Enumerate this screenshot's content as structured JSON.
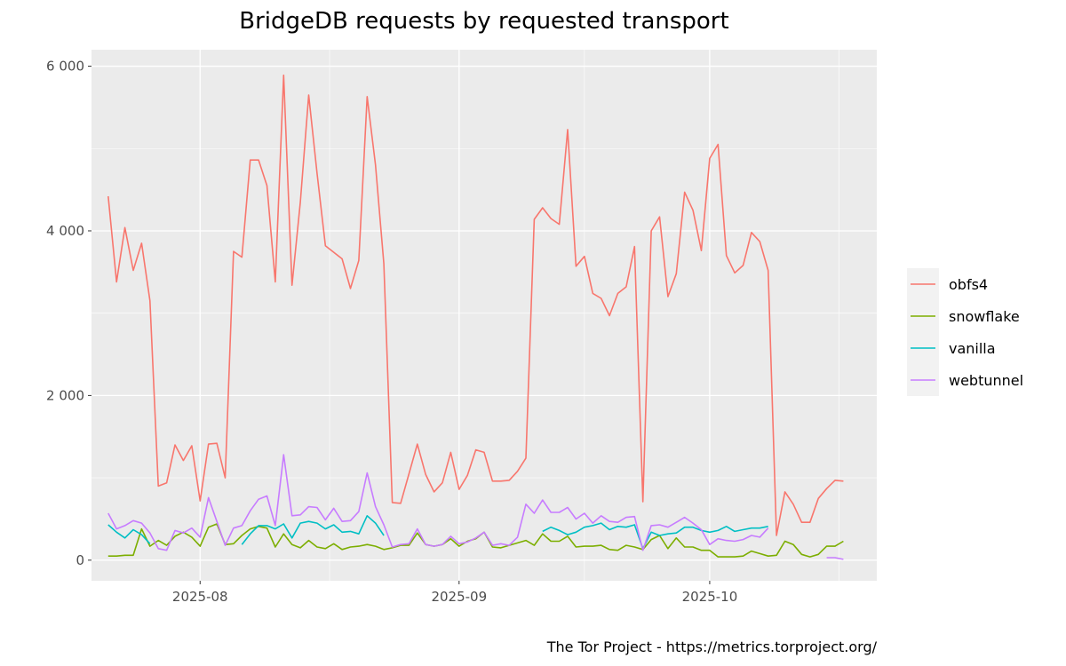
{
  "chart_data": {
    "type": "line",
    "title": "BridgeDB requests by requested transport",
    "caption": "The Tor Project - https://metrics.torproject.org/",
    "xlabel": "",
    "ylabel": "",
    "x_start": "2025-07-21",
    "x_end": "2025-10-19",
    "x_ticks": [
      {
        "date": "2025-08-01",
        "label": "2025-08"
      },
      {
        "date": "2025-09-01",
        "label": "2025-09"
      },
      {
        "date": "2025-10-01",
        "label": "2025-10"
      }
    ],
    "ylim": [
      -250,
      6200
    ],
    "y_ticks": [
      {
        "value": 0,
        "label": "0"
      },
      {
        "value": 2000,
        "label": "2 000"
      },
      {
        "value": 4000,
        "label": "4 000"
      },
      {
        "value": 6000,
        "label": "6 000"
      }
    ],
    "grid": true,
    "legend_position": "right",
    "series": [
      {
        "name": "obfs4",
        "color": "#F8766D",
        "start": "2025-07-21",
        "values": [
          4420,
          3380,
          4040,
          3520,
          3850,
          3150,
          900,
          940,
          1400,
          1210,
          1390,
          720,
          1410,
          1420,
          1000,
          3750,
          3680,
          4860,
          4860,
          4550,
          3380,
          5890,
          3340,
          4350,
          5650,
          4700,
          3820,
          3740,
          3660,
          3300,
          3640,
          5630,
          4800,
          3600,
          700,
          690,
          1050,
          1410,
          1040,
          830,
          940,
          1310,
          860,
          1030,
          1340,
          1310,
          960,
          960,
          970,
          1080,
          1240,
          4140,
          4280,
          4150,
          4080,
          5230,
          3570,
          3690,
          3240,
          3180,
          2970,
          3240,
          3320,
          3810,
          710,
          4000,
          4170,
          3200,
          3480,
          4470,
          4250,
          3760,
          4880,
          5050,
          3700,
          3490,
          3580,
          3980,
          3870,
          3520,
          300,
          830,
          680,
          460,
          460,
          750,
          870,
          970,
          960
        ]
      },
      {
        "name": "snowflake",
        "color": "#7CAE00",
        "start": "2025-07-21",
        "values": [
          50,
          50,
          60,
          60,
          380,
          170,
          240,
          180,
          290,
          340,
          280,
          170,
          400,
          440,
          190,
          200,
          300,
          380,
          410,
          390,
          160,
          320,
          190,
          150,
          240,
          160,
          140,
          200,
          130,
          160,
          170,
          190,
          170,
          130,
          150,
          180,
          180,
          330,
          190,
          170,
          190,
          260,
          170,
          230,
          260,
          340,
          160,
          150,
          180,
          210,
          240,
          180,
          320,
          230,
          230,
          290,
          160,
          170,
          170,
          180,
          130,
          120,
          180,
          160,
          130,
          250,
          300,
          140,
          270,
          160,
          160,
          120,
          120,
          40,
          40,
          40,
          50,
          110,
          80,
          50,
          60,
          230,
          190,
          70,
          40,
          70,
          170,
          170,
          230
        ]
      },
      {
        "name": "vanilla",
        "color": "#00BFC4",
        "start": "2025-07-21",
        "values": [
          430,
          340,
          270,
          370,
          310,
          200,
          null,
          null,
          null,
          null,
          null,
          null,
          null,
          null,
          null,
          null,
          190,
          320,
          420,
          420,
          380,
          440,
          270,
          450,
          470,
          450,
          380,
          430,
          340,
          350,
          320,
          540,
          450,
          300,
          null,
          null,
          null,
          null,
          null,
          null,
          null,
          null,
          null,
          null,
          null,
          null,
          null,
          null,
          null,
          null,
          null,
          null,
          350,
          400,
          360,
          310,
          340,
          400,
          420,
          450,
          370,
          410,
          400,
          430,
          140,
          340,
          300,
          320,
          330,
          400,
          400,
          360,
          340,
          360,
          410,
          350,
          370,
          390,
          390,
          410
        ]
      },
      {
        "name": "webtunnel",
        "color": "#C77CFF",
        "start": "2025-07-21",
        "values": [
          570,
          380,
          420,
          480,
          450,
          330,
          140,
          120,
          360,
          330,
          390,
          280,
          760,
          470,
          180,
          390,
          420,
          600,
          740,
          780,
          420,
          1280,
          540,
          550,
          650,
          640,
          490,
          630,
          470,
          480,
          590,
          1060,
          650,
          430,
          160,
          190,
          200,
          380,
          190,
          170,
          190,
          290,
          200,
          220,
          270,
          340,
          180,
          200,
          180,
          280,
          680,
          570,
          730,
          580,
          580,
          640,
          500,
          570,
          450,
          540,
          470,
          460,
          520,
          530,
          120,
          420,
          430,
          400,
          460,
          520,
          450,
          370,
          190,
          260,
          240,
          230,
          250,
          300,
          280,
          390,
          null,
          null,
          null,
          null,
          null,
          null,
          30,
          30,
          10
        ]
      }
    ]
  }
}
